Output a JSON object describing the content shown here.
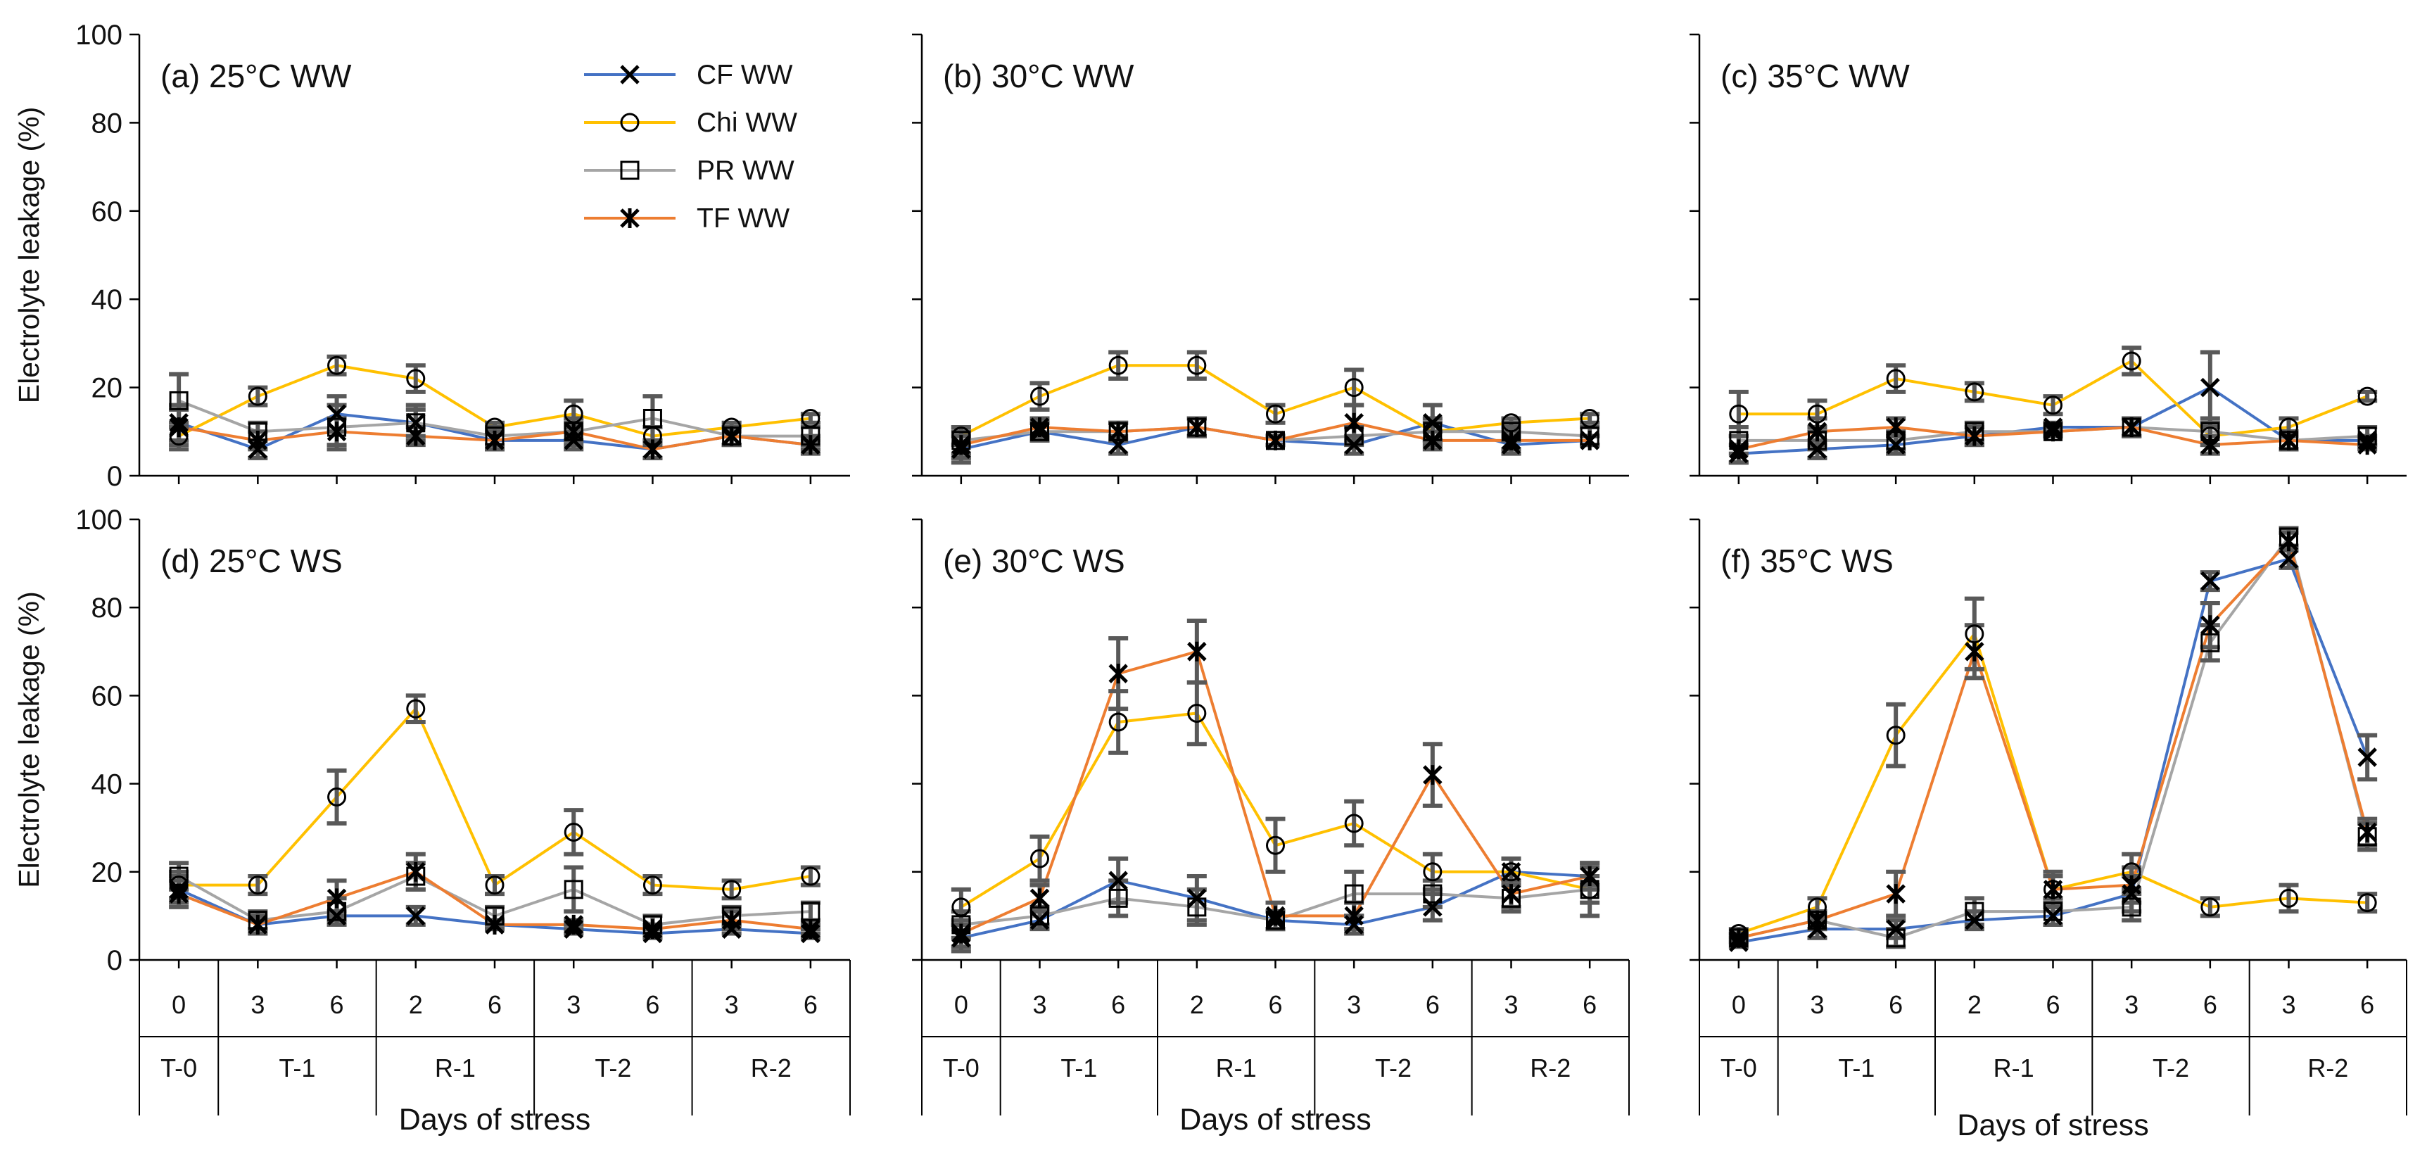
{
  "chart_data": {
    "type": "line",
    "ylabel": "Electrolyte leakage (%)",
    "xlabel": "Days of stress",
    "ylim": [
      0,
      100
    ],
    "yticks": [
      0,
      20,
      40,
      60,
      80,
      100
    ],
    "categories": [
      "0",
      "3",
      "6",
      "2",
      "6",
      "3",
      "6",
      "3",
      "6"
    ],
    "groups": [
      {
        "label": "T-0",
        "span": 1
      },
      {
        "label": "T-1",
        "span": 2
      },
      {
        "label": "R-1",
        "span": 2
      },
      {
        "label": "T-2",
        "span": 2
      },
      {
        "label": "R-2",
        "span": 2
      }
    ],
    "legend": {
      "position": "top-right of panel (a)",
      "entries": [
        {
          "name": "CF WW",
          "marker": "x",
          "color": "#4472c4"
        },
        {
          "name": "Chi WW",
          "marker": "circle",
          "color": "#ffc000"
        },
        {
          "name": "PR WW",
          "marker": "square",
          "color": "#a5a5a5"
        },
        {
          "name": "TF WW",
          "marker": "star",
          "color": "#ed7d31"
        }
      ]
    },
    "panels": [
      {
        "id": "a",
        "title": "(a) 25°C WW",
        "series": [
          {
            "name": "CF",
            "color": "#4472c4",
            "marker": "x",
            "values": [
              12,
              6,
              14,
              12,
              8,
              8,
              6,
              9,
              7
            ],
            "errors": [
              4,
              2,
              4,
              3,
              2,
              2,
              2,
              2,
              2
            ]
          },
          {
            "name": "Chi",
            "color": "#ffc000",
            "marker": "circle",
            "values": [
              9,
              18,
              25,
              22,
              11,
              14,
              9,
              11,
              13
            ],
            "errors": [
              3,
              2,
              2,
              3,
              1,
              3,
              2,
              1,
              1
            ]
          },
          {
            "name": "PR",
            "color": "#a5a5a5",
            "marker": "square",
            "values": [
              17,
              10,
              11,
              12,
              9,
              10,
              13,
              9,
              9
            ],
            "errors": [
              6,
              2,
              5,
              4,
              2,
              3,
              5,
              2,
              2
            ]
          },
          {
            "name": "TF",
            "color": "#ed7d31",
            "marker": "star",
            "values": [
              11,
              8,
              10,
              9,
              8,
              10,
              6,
              9,
              7
            ],
            "errors": [
              4,
              2,
              3,
              2,
              2,
              2,
              2,
              2,
              1
            ]
          }
        ]
      },
      {
        "id": "b",
        "title": "(b) 30°C WW",
        "series": [
          {
            "name": "CF",
            "color": "#4472c4",
            "marker": "x",
            "values": [
              6,
              10,
              7,
              11,
              8,
              7,
              12,
              7,
              8
            ],
            "errors": [
              3,
              2,
              2,
              2,
              1,
              2,
              4,
              2,
              1
            ]
          },
          {
            "name": "Chi",
            "color": "#ffc000",
            "marker": "circle",
            "values": [
              9,
              18,
              25,
              25,
              14,
              20,
              10,
              12,
              13
            ],
            "errors": [
              2,
              3,
              3,
              3,
              2,
              4,
              2,
              1,
              1
            ]
          },
          {
            "name": "PR",
            "color": "#a5a5a5",
            "marker": "square",
            "values": [
              8,
              10,
              10,
              11,
              8,
              9,
              10,
              10,
              9
            ],
            "errors": [
              3,
              2,
              2,
              2,
              1,
              2,
              3,
              2,
              2
            ]
          },
          {
            "name": "TF",
            "color": "#ed7d31",
            "marker": "star",
            "values": [
              7,
              11,
              10,
              11,
              8,
              12,
              8,
              8,
              8
            ],
            "errors": [
              3,
              2,
              2,
              2,
              1,
              4,
              2,
              2,
              1
            ]
          }
        ]
      },
      {
        "id": "c",
        "title": "(c) 35°C WW",
        "series": [
          {
            "name": "CF",
            "color": "#4472c4",
            "marker": "x",
            "values": [
              5,
              6,
              7,
              9,
              11,
              11,
              20,
              8,
              8
            ],
            "errors": [
              2,
              2,
              2,
              2,
              1,
              2,
              8,
              2,
              1
            ]
          },
          {
            "name": "Chi",
            "color": "#ffc000",
            "marker": "circle",
            "values": [
              14,
              14,
              22,
              19,
              16,
              26,
              9,
              11,
              18
            ],
            "errors": [
              5,
              3,
              3,
              2,
              2,
              3,
              2,
              2,
              1
            ]
          },
          {
            "name": "PR",
            "color": "#a5a5a5",
            "marker": "square",
            "values": [
              8,
              8,
              8,
              10,
              10,
              11,
              10,
              8,
              9
            ],
            "errors": [
              3,
              2,
              2,
              2,
              1,
              2,
              3,
              2,
              2
            ]
          },
          {
            "name": "TF",
            "color": "#ed7d31",
            "marker": "star",
            "values": [
              6,
              10,
              11,
              9,
              10,
              11,
              7,
              8,
              7
            ],
            "errors": [
              3,
              3,
              2,
              2,
              1,
              2,
              2,
              2,
              1
            ]
          }
        ]
      },
      {
        "id": "d",
        "title": "(d) 25°C WS",
        "series": [
          {
            "name": "CF",
            "color": "#4472c4",
            "marker": "x",
            "values": [
              16,
              8,
              10,
              10,
              8,
              7,
              6,
              7,
              6
            ],
            "errors": [
              3,
              1,
              1,
              2,
              1,
              1,
              1,
              1,
              1
            ]
          },
          {
            "name": "Chi",
            "color": "#ffc000",
            "marker": "circle",
            "values": [
              17,
              17,
              37,
              57,
              17,
              29,
              17,
              16,
              19
            ],
            "errors": [
              3,
              2,
              6,
              3,
              2,
              5,
              2,
              2,
              2
            ]
          },
          {
            "name": "PR",
            "color": "#a5a5a5",
            "marker": "square",
            "values": [
              19,
              9,
              11,
              19,
              10,
              16,
              8,
              10,
              11
            ],
            "errors": [
              3,
              2,
              3,
              3,
              2,
              5,
              2,
              2,
              2
            ]
          },
          {
            "name": "TF",
            "color": "#ed7d31",
            "marker": "star",
            "values": [
              15,
              8,
              14,
              20,
              8,
              8,
              7,
              9,
              7
            ],
            "errors": [
              3,
              2,
              4,
              4,
              1,
              1,
              1,
              2,
              1
            ]
          }
        ]
      },
      {
        "id": "e",
        "title": "(e) 30°C WS",
        "series": [
          {
            "name": "CF",
            "color": "#4472c4",
            "marker": "x",
            "values": [
              5,
              9,
              18,
              14,
              9,
              8,
              12,
              20,
              19
            ],
            "errors": [
              3,
              2,
              5,
              5,
              2,
              2,
              3,
              3,
              2
            ]
          },
          {
            "name": "Chi",
            "color": "#ffc000",
            "marker": "circle",
            "values": [
              12,
              23,
              54,
              56,
              26,
              31,
              20,
              20,
              16
            ],
            "errors": [
              4,
              5,
              7,
              7,
              6,
              5,
              4,
              3,
              3
            ]
          },
          {
            "name": "PR",
            "color": "#a5a5a5",
            "marker": "square",
            "values": [
              8,
              10,
              14,
              12,
              9,
              15,
              15,
              14,
              16
            ],
            "errors": [
              3,
              2,
              4,
              4,
              2,
              5,
              3,
              3,
              6
            ]
          },
          {
            "name": "TF",
            "color": "#ed7d31",
            "marker": "star",
            "values": [
              6,
              14,
              65,
              70,
              10,
              10,
              42,
              15,
              19
            ],
            "errors": [
              3,
              3,
              8,
              7,
              3,
              3,
              7,
              3,
              3
            ]
          }
        ]
      },
      {
        "id": "f",
        "title": "(f) 35°C WS",
        "series": [
          {
            "name": "CF",
            "color": "#4472c4",
            "marker": "x",
            "values": [
              4,
              7,
              7,
              9,
              10,
              15,
              86,
              91,
              46
            ],
            "errors": [
              1,
              2,
              2,
              2,
              2,
              4,
              2,
              2,
              5
            ]
          },
          {
            "name": "Chi",
            "color": "#ffc000",
            "marker": "circle",
            "values": [
              6,
              12,
              51,
              74,
              16,
              20,
              12,
              14,
              13
            ],
            "errors": [
              1,
              2,
              7,
              8,
              3,
              4,
              2,
              3,
              2
            ]
          },
          {
            "name": "PR",
            "color": "#a5a5a5",
            "marker": "square",
            "values": [
              5,
              9,
              5,
              11,
              11,
              12,
              72,
              96,
              28
            ],
            "errors": [
              1,
              2,
              2,
              3,
              3,
              3,
              4,
              2,
              3
            ]
          },
          {
            "name": "TF",
            "color": "#ed7d31",
            "marker": "star",
            "values": [
              5,
              9,
              15,
              70,
              16,
              17,
              76,
              95,
              29
            ],
            "errors": [
              1,
              2,
              5,
              6,
              4,
              4,
              5,
              2,
              3
            ]
          }
        ]
      }
    ]
  }
}
